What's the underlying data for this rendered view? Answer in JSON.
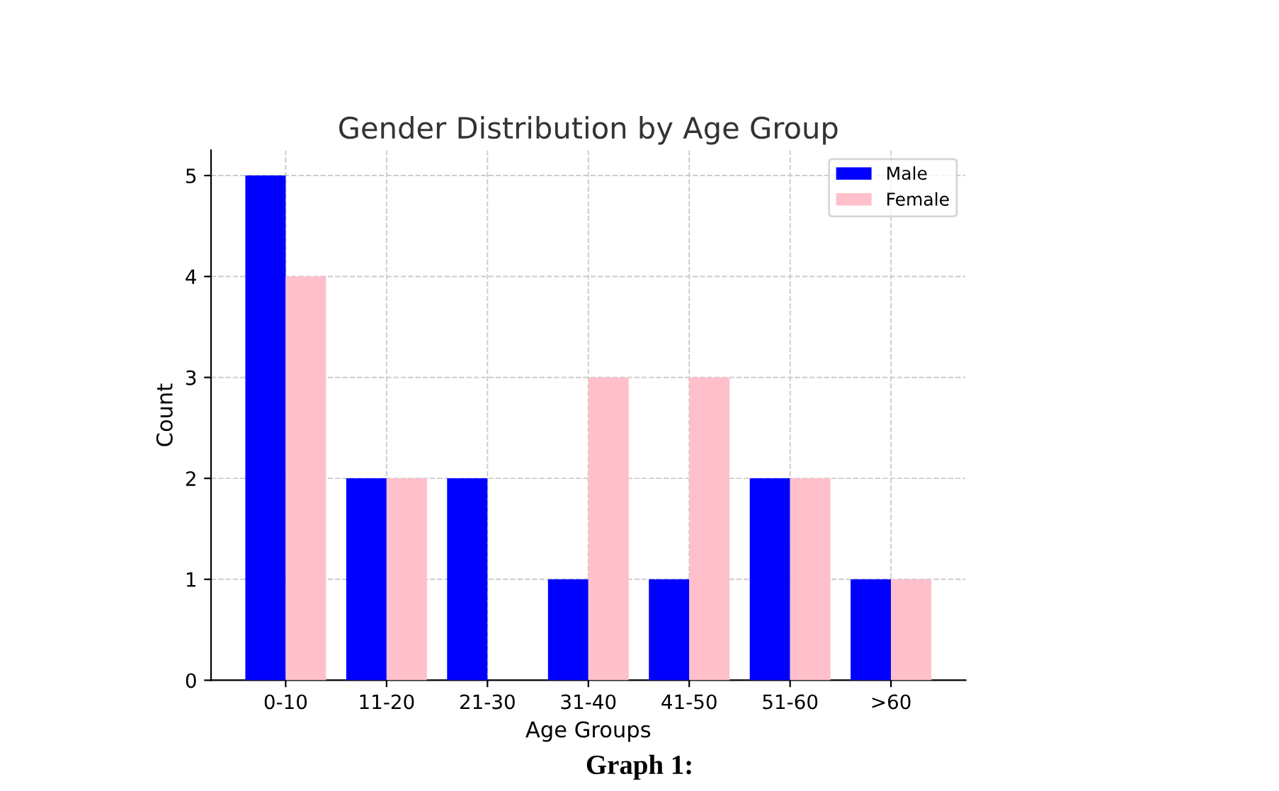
{
  "chart_data": {
    "type": "bar",
    "title": "Gender Distribution by Age Group",
    "xlabel": "Age Groups",
    "ylabel": "Count",
    "categories": [
      "0-10",
      "11-20",
      "21-30",
      "31-40",
      "41-50",
      "51-60",
      ">60"
    ],
    "series": [
      {
        "name": "Male",
        "color": "#0000ff",
        "values": [
          5,
          2,
          2,
          1,
          1,
          2,
          1
        ]
      },
      {
        "name": "Female",
        "color": "#ffc0cb",
        "values": [
          4,
          2,
          0,
          3,
          3,
          2,
          1
        ]
      }
    ],
    "ylim": [
      0,
      5.25
    ],
    "yticks": [
      0,
      1,
      2,
      3,
      4,
      5
    ],
    "grid": true,
    "legend": "top right",
    "annotations": [
      "Graph 1:"
    ]
  }
}
